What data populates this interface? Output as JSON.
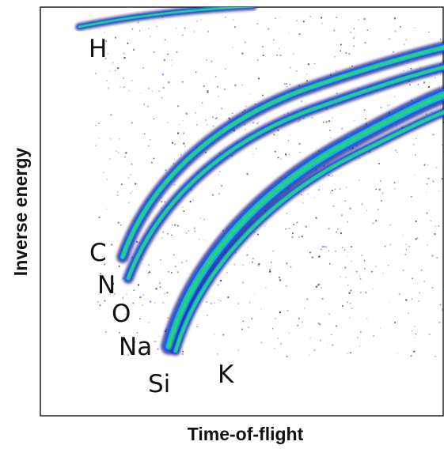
{
  "chart_data": {
    "type": "heatmap",
    "xlabel": "Time-of-flight",
    "ylabel": "Inverse energy",
    "title": "",
    "grid": false,
    "tracks": [
      {
        "label": "H"
      },
      {
        "label": "C"
      },
      {
        "label": "N"
      },
      {
        "label": "O"
      },
      {
        "label": "Na"
      },
      {
        "label": "Si"
      },
      {
        "label": "K"
      }
    ],
    "colormap": [
      "#1b1f8a",
      "#1f5fe0",
      "#1fb7d9",
      "#27d76b",
      "#b8f02a",
      "#f0d52a"
    ]
  }
}
